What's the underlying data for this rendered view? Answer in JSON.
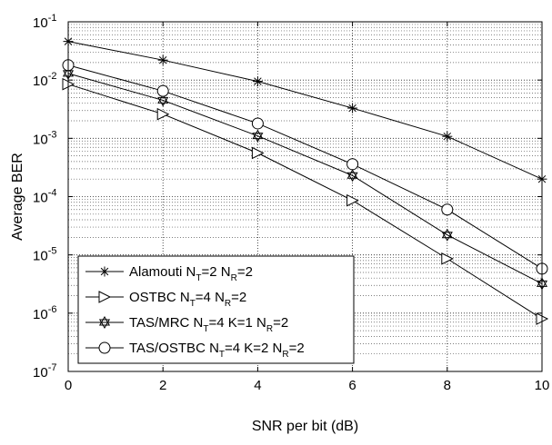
{
  "chart_data": {
    "type": "line",
    "title": "",
    "xlabel": "SNR per bit (dB)",
    "ylabel": "Average BER",
    "xlim": [
      0,
      10
    ],
    "ylim": [
      1e-07,
      0.1
    ],
    "yscale": "log",
    "grid": true,
    "legend_position": "bottom-left",
    "x_ticks": [
      "0",
      "2",
      "4",
      "6",
      "8",
      "10"
    ],
    "y_ticks": [
      {
        "base": "10",
        "exp": "-7"
      },
      {
        "base": "10",
        "exp": "-6"
      },
      {
        "base": "10",
        "exp": "-5"
      },
      {
        "base": "10",
        "exp": "-4"
      },
      {
        "base": "10",
        "exp": "-3"
      },
      {
        "base": "10",
        "exp": "-2"
      },
      {
        "base": "10",
        "exp": "-1"
      }
    ],
    "x": [
      0,
      2,
      4,
      6,
      8,
      10
    ],
    "series": [
      {
        "name": "Alamouti",
        "legend_parts": [
          {
            "t": "Alamouti N"
          },
          {
            "t": "T",
            "sub": true
          },
          {
            "t": "=2 N"
          },
          {
            "t": "R",
            "sub": true
          },
          {
            "t": "=2"
          }
        ],
        "marker": "asterisk",
        "values": [
          0.046,
          0.022,
          0.0095,
          0.0033,
          0.00108,
          0.0002
        ]
      },
      {
        "name": "OSTBC",
        "legend_parts": [
          {
            "t": "OSTBC  N"
          },
          {
            "t": "T",
            "sub": true
          },
          {
            "t": "=4 N"
          },
          {
            "t": "R",
            "sub": true
          },
          {
            "t": "=2"
          }
        ],
        "marker": "triangle-right",
        "values": [
          0.0085,
          0.0026,
          0.00056,
          8.6e-05,
          8.6e-06,
          8e-07
        ]
      },
      {
        "name": "TAS/MRC",
        "legend_parts": [
          {
            "t": "TAS/MRC      N"
          },
          {
            "t": "T",
            "sub": true
          },
          {
            "t": "=4 K=1 N"
          },
          {
            "t": "R",
            "sub": true
          },
          {
            "t": "=2"
          }
        ],
        "marker": "hexagram",
        "values": [
          0.013,
          0.0045,
          0.0011,
          0.00023,
          2.2e-05,
          3.2e-06
        ]
      },
      {
        "name": "TAS/OSTBC",
        "legend_parts": [
          {
            "t": "TAS/OSTBC N"
          },
          {
            "t": "T",
            "sub": true
          },
          {
            "t": "=4 K=2 N"
          },
          {
            "t": "R",
            "sub": true
          },
          {
            "t": "=2"
          }
        ],
        "marker": "circle",
        "values": [
          0.018,
          0.0065,
          0.0018,
          0.00036,
          6e-05,
          5.8e-06
        ]
      }
    ]
  }
}
